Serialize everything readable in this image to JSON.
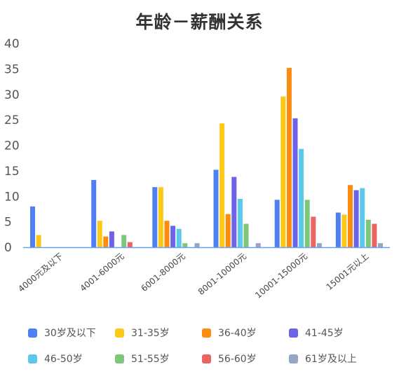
{
  "chart_data": {
    "type": "bar",
    "title": "年龄－薪酬关系",
    "categories": [
      "4000元及以下",
      "4001-6000元",
      "6001-8000元",
      "8001-10000元",
      "10001-15000元",
      "15001元以上"
    ],
    "ylim": [
      0,
      40
    ],
    "yticks": [
      0,
      5,
      10,
      15,
      20,
      25,
      30,
      35,
      40
    ],
    "grid": false,
    "legend_position": "bottom",
    "series": [
      {
        "name": "30岁及以下",
        "color": "#4f80f3",
        "values": [
          8,
          13.2,
          11.8,
          15.2,
          9.3,
          6.8
        ]
      },
      {
        "name": "31-35岁",
        "color": "#fcc918",
        "values": [
          2.4,
          5.2,
          11.8,
          24.3,
          29.6,
          6.4
        ]
      },
      {
        "name": "36-40岁",
        "color": "#fb8c0f",
        "values": [
          0,
          2.1,
          5.2,
          6.5,
          35.2,
          12.2
        ]
      },
      {
        "name": "41-45岁",
        "color": "#6c63e8",
        "values": [
          0,
          3.1,
          4.2,
          13.8,
          25.3,
          11.2
        ]
      },
      {
        "name": "46-50岁",
        "color": "#5bc8ec",
        "values": [
          0,
          0,
          3.6,
          9.5,
          19.3,
          11.6
        ]
      },
      {
        "name": "51-55岁",
        "color": "#7ec77a",
        "values": [
          0,
          2.4,
          0.8,
          4.6,
          9.3,
          5.4
        ]
      },
      {
        "name": "56-60岁",
        "color": "#eb6464",
        "values": [
          0,
          1,
          0,
          0,
          6,
          4.6
        ]
      },
      {
        "name": "61岁及以上",
        "color": "#94a5c6",
        "values": [
          0,
          0,
          0.8,
          0.8,
          0.8,
          0.8
        ]
      }
    ]
  }
}
